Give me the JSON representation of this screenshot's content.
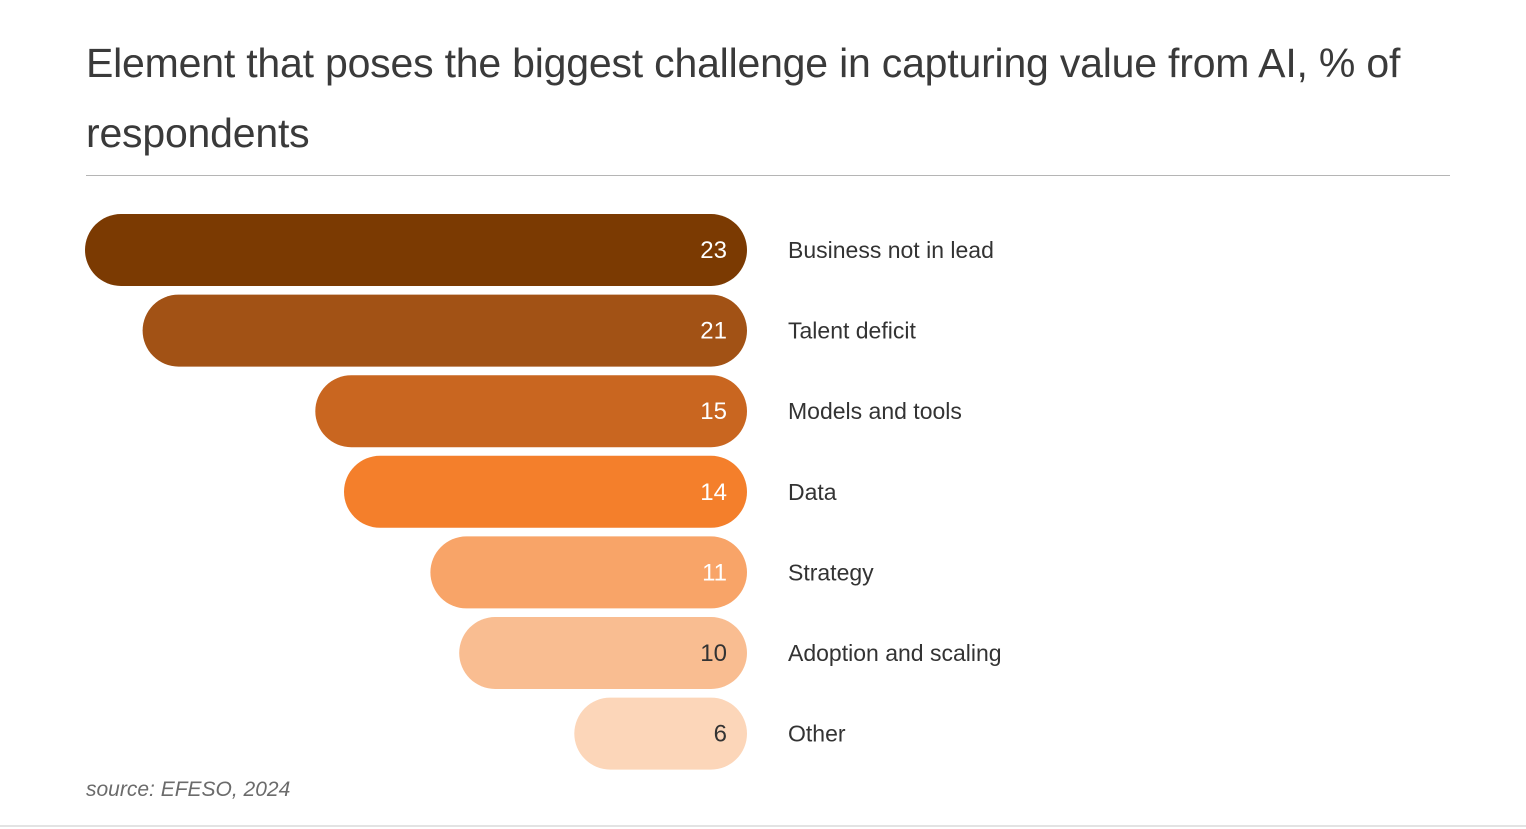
{
  "chart_data": {
    "type": "bar",
    "orientation": "horizontal",
    "title": "Element that poses the biggest challenge in capturing value from AI, % of respondents",
    "categories": [
      "Business not in lead",
      "Talent deficit",
      "Models and tools",
      "Data",
      "Strategy",
      "Adoption and scaling",
      "Other"
    ],
    "values": [
      23,
      21,
      15,
      14,
      11,
      10,
      6
    ],
    "colors": [
      "#7b3a02",
      "#a25215",
      "#c96620",
      "#f47f2b",
      "#f8a468",
      "#f9bd91",
      "#fcd6b9"
    ],
    "value_colors": [
      "#ffffff",
      "#ffffff",
      "#ffffff",
      "#ffffff",
      "#ffffff",
      "#333333",
      "#333333"
    ],
    "unit": "% of respondents",
    "xlabel": "",
    "ylabel": "",
    "source": "source: EFESO, 2024"
  }
}
